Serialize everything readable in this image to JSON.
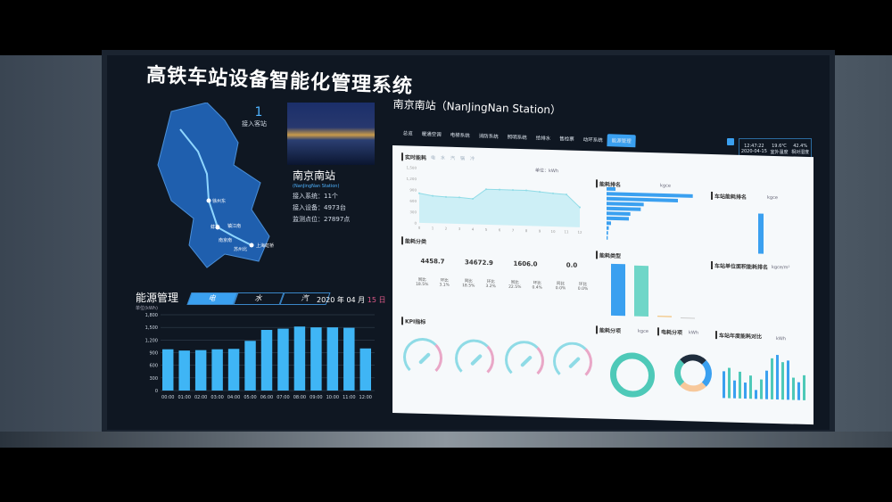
{
  "title": "高铁车站设备智能化管理系统",
  "summary": {
    "count": "1",
    "count_label": "接入客站"
  },
  "station": {
    "name": "南京南站",
    "en": "(NanJingNan Station)",
    "systems": "接入系统：11个",
    "devices": "接入设备：4973台",
    "points": "监测点位：27897点"
  },
  "map": {
    "stations": [
      "徐州东",
      "蚌埠",
      "镇江南",
      "南京南",
      "苏州北",
      "上海虹桥"
    ],
    "colors": {
      "region": "#1f5fae",
      "line": "#8fd6ff"
    }
  },
  "energy": {
    "title": "能源管理",
    "unit": "单位(kWh)",
    "tabs": [
      {
        "label": "电",
        "active": true
      },
      {
        "label": "水"
      },
      {
        "label": "汽"
      }
    ],
    "date": {
      "year": "2020 年",
      "month": "04 月",
      "day": "15 日"
    }
  },
  "chart_data": [
    {
      "type": "bar",
      "categories": [
        "00:00",
        "01:00",
        "02:00",
        "03:00",
        "04:00",
        "05:00",
        "06:00",
        "07:00",
        "08:00",
        "09:00",
        "10:00",
        "11:00",
        "12:00"
      ],
      "values": [
        980,
        950,
        960,
        980,
        990,
        1180,
        1440,
        1470,
        1520,
        1500,
        1500,
        1490,
        1000
      ],
      "ylim": [
        0,
        1800
      ],
      "yticks": [
        "0",
        "300",
        "600",
        "900",
        "1,200",
        "1,500",
        "1,800"
      ],
      "ylabel": "单位(kWh)",
      "color": "#3fb5f5",
      "grid": true
    },
    {
      "type": "area",
      "title": "实时能耗",
      "categories": [
        "0",
        "1",
        "2",
        "3",
        "4",
        "5",
        "6",
        "7",
        "8",
        "9",
        "10",
        "11",
        "12"
      ],
      "values": [
        800,
        740,
        720,
        720,
        690,
        960,
        960,
        960,
        960,
        930,
        900,
        880,
        540
      ],
      "ylim": [
        0,
        1500
      ],
      "yticks": [
        "0",
        "300",
        "600",
        "900",
        "1,200",
        "1,500"
      ],
      "unit": "kWh",
      "color": "#8fdbe6"
    }
  ],
  "right": {
    "station_title": "南京南站（NanJingNan Station）",
    "tabs": [
      {
        "label": "总览"
      },
      {
        "label": "暖通空调"
      },
      {
        "label": "电梯系统"
      },
      {
        "label": "消防系统"
      },
      {
        "label": "照明系统"
      },
      {
        "label": "给排水"
      },
      {
        "label": "售检票"
      },
      {
        "label": "动环系统"
      },
      {
        "label": "能源管理",
        "active": true
      }
    ],
    "clock": {
      "time": "12:47:22",
      "date": "2020-04-15",
      "temp": "19.6℃",
      "temp_label": "室外温度",
      "humidity": "42.4%",
      "humidity_label": "相对湿度"
    }
  },
  "dashboard": {
    "realtime": {
      "title": "实时能耗",
      "filters": [
        "电",
        "水",
        "汽",
        "锅",
        "冷"
      ],
      "unit": "单位：kWh"
    },
    "category": {
      "title": "能耗分类",
      "items": [
        {
          "value": "4458.7",
          "yoy": "18.5%",
          "mom": "3.1%"
        },
        {
          "value": "34672.9",
          "yoy": "18.5%",
          "mom": "3.2%"
        },
        {
          "value": "1606.0",
          "yoy": "22.5%",
          "mom": "0.4%"
        },
        {
          "value": "0.0",
          "yoy": "0.0%",
          "mom": "0.0%"
        }
      ],
      "yoy_label": "同比",
      "mom_label": "环比"
    },
    "kpi": {
      "title": "KPI指标",
      "gauges": 4
    },
    "ranking": {
      "title": "能耗排名",
      "unit": "kgce",
      "values": [
        60,
        580,
        480,
        250,
        230,
        160,
        150,
        30,
        15,
        10,
        8
      ]
    },
    "station_rank": {
      "title": "车站能耗排名",
      "unit": "kgce"
    },
    "type": {
      "title": "能耗类型",
      "values": [
        14500,
        14200,
        300,
        0
      ],
      "colors": [
        "#3aa0f0",
        "#6fd6c8",
        "#f2c27a",
        "#ccc"
      ]
    },
    "area_rank": {
      "title": "车站单位面积能耗排名",
      "unit": "kgce/m²"
    },
    "split": {
      "title": "能耗分项",
      "unit": "kgce"
    },
    "elec_split": {
      "title": "电耗分项",
      "unit": "kWh"
    },
    "annual": {
      "title": "车站年度能耗对比",
      "unit": "kWh",
      "filters": [
        "电",
        "水",
        "汽",
        "锅",
        "冷"
      ]
    }
  }
}
